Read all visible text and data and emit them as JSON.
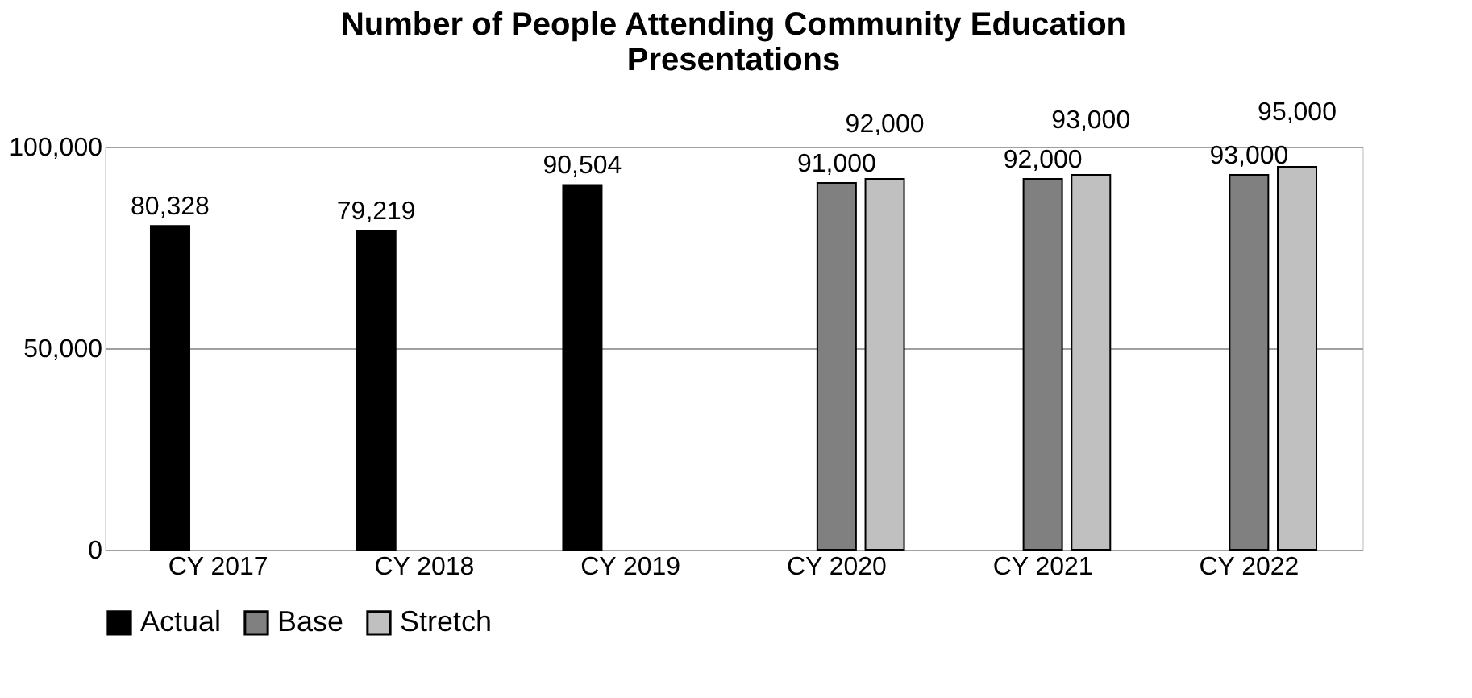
{
  "chart_data": {
    "type": "bar",
    "title": "Number of People Attending Community Education Presentations",
    "categories": [
      "CY 2017",
      "CY 2018",
      "CY 2019",
      "CY 2020",
      "CY 2021",
      "CY 2022"
    ],
    "series": [
      {
        "name": "Actual",
        "color": "#000000",
        "values": [
          80328,
          79219,
          90504,
          null,
          null,
          null
        ],
        "value_labels": [
          "80,328",
          "79,219",
          "90,504",
          null,
          null,
          null
        ]
      },
      {
        "name": "Base",
        "color": "#808080",
        "values": [
          null,
          null,
          null,
          91000,
          92000,
          93000
        ],
        "value_labels": [
          null,
          null,
          null,
          "91,000",
          "92,000",
          "93,000"
        ]
      },
      {
        "name": "Stretch",
        "color": "#c0c0c0",
        "values": [
          null,
          null,
          null,
          92000,
          93000,
          95000
        ],
        "value_labels": [
          null,
          null,
          null,
          "92,000",
          "93,000",
          "95,000"
        ]
      }
    ],
    "ylim": [
      0,
      100000
    ],
    "yticks": [
      0,
      {
        "value": 50000,
        "label": "50,000"
      },
      {
        "value": 100000,
        "label": "100,000"
      }
    ],
    "grid": "y",
    "legend": "bottom"
  }
}
